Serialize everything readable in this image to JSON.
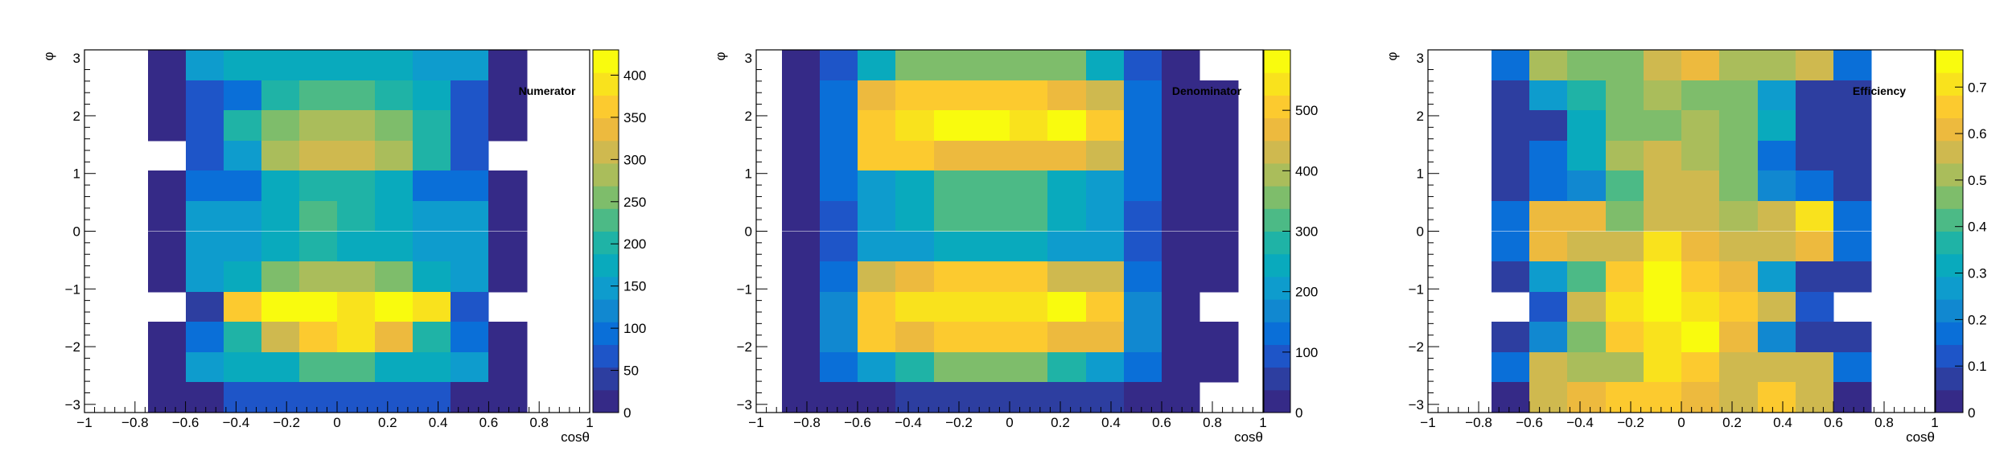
{
  "colors": {
    "palette": [
      "#352a87",
      "#2d3ea0",
      "#1e55c8",
      "#0a6fd8",
      "#1188d0",
      "#0e9ccd",
      "#09aabd",
      "#1fb3a6",
      "#4cba86",
      "#7ebd6b",
      "#aabd5b",
      "#cfb94f",
      "#edba3e",
      "#fcca2f",
      "#f9e21d",
      "#f9fb0e"
    ]
  },
  "chart_data": [
    {
      "type": "heatmap",
      "title": "Numerator",
      "xlabel": "cosθ",
      "ylabel": "φ",
      "xlim": [
        -1,
        1
      ],
      "ylim": [
        -3.14159,
        3.14159
      ],
      "x_ticks": [
        "−1",
        "−0.8",
        "−0.6",
        "−0.4",
        "−0.2",
        "0",
        "0.2",
        "0.4",
        "0.6",
        "0.8",
        "1"
      ],
      "y_ticks": [
        "−3",
        "−2",
        "−1",
        "0",
        "1",
        "2",
        "3"
      ],
      "x_edges": [
        -0.75,
        -0.6,
        -0.45,
        -0.3,
        -0.15,
        0,
        0.15,
        0.3,
        0.45,
        0.6,
        0.75
      ],
      "zlim": [
        0,
        430
      ],
      "z_ticks": [
        0,
        50,
        100,
        150,
        200,
        250,
        300,
        350,
        400
      ],
      "values": [
        [
          0,
          150,
          165,
          170,
          185,
          185,
          165,
          155,
          150,
          0
        ],
        [
          0,
          80,
          100,
          190,
          215,
          215,
          190,
          170,
          80,
          0
        ],
        [
          0,
          80,
          200,
          260,
          280,
          280,
          260,
          195,
          80,
          0
        ],
        [
          null,
          60,
          160,
          280,
          300,
          300,
          280,
          200,
          60,
          null
        ],
        [
          0,
          100,
          105,
          175,
          205,
          190,
          170,
          90,
          90,
          0
        ],
        [
          0,
          140,
          140,
          170,
          215,
          190,
          170,
          150,
          150,
          0
        ],
        [
          0,
          140,
          150,
          165,
          200,
          180,
          165,
          140,
          140,
          0
        ],
        [
          0,
          140,
          170,
          250,
          280,
          280,
          250,
          180,
          140,
          0
        ],
        [
          null,
          40,
          360,
          420,
          420,
          400,
          420,
          380,
          70,
          null
        ],
        [
          0,
          90,
          200,
          320,
          350,
          400,
          330,
          200,
          90,
          0
        ],
        [
          0,
          160,
          170,
          175,
          220,
          220,
          170,
          165,
          160,
          0
        ],
        [
          0,
          0,
          60,
          60,
          60,
          60,
          60,
          60,
          0,
          0
        ]
      ]
    },
    {
      "type": "heatmap",
      "title": "Denominator",
      "xlabel": "cosθ",
      "ylabel": "φ",
      "xlim": [
        -1,
        1
      ],
      "ylim": [
        -3.14159,
        3.14159
      ],
      "x_ticks": [
        "−1",
        "−0.8",
        "−0.6",
        "−0.4",
        "−0.2",
        "0",
        "0.2",
        "0.4",
        "0.6",
        "0.8",
        "1"
      ],
      "y_ticks": [
        "−3",
        "−2",
        "−1",
        "0",
        "1",
        "2",
        "3"
      ],
      "x_edges": [
        -0.9,
        -0.75,
        -0.6,
        -0.45,
        -0.3,
        -0.15,
        0,
        0.15,
        0.3,
        0.45,
        0.6,
        0.75,
        0.9
      ],
      "zlim": [
        0,
        600
      ],
      "z_ticks": [
        0,
        100,
        200,
        300,
        400,
        500
      ],
      "values": [
        [
          0,
          80,
          260,
          340,
          340,
          340,
          340,
          340,
          260,
          80,
          0,
          null
        ],
        [
          0,
          120,
          460,
          490,
          500,
          500,
          500,
          460,
          420,
          120,
          0,
          0
        ],
        [
          0,
          120,
          520,
          530,
          580,
          580,
          560,
          580,
          520,
          120,
          0,
          0
        ],
        [
          0,
          140,
          520,
          520,
          480,
          480,
          470,
          450,
          440,
          140,
          0,
          0
        ],
        [
          0,
          140,
          190,
          250,
          320,
          320,
          320,
          250,
          190,
          140,
          0,
          0
        ],
        [
          0,
          100,
          190,
          260,
          330,
          330,
          330,
          260,
          190,
          100,
          0,
          0
        ],
        [
          0,
          100,
          210,
          210,
          260,
          260,
          260,
          210,
          210,
          100,
          0,
          0
        ],
        [
          0,
          140,
          420,
          460,
          490,
          490,
          490,
          440,
          440,
          140,
          0,
          0
        ],
        [
          0,
          150,
          510,
          530,
          550,
          550,
          550,
          590,
          490,
          150,
          0,
          null
        ],
        [
          0,
          180,
          510,
          480,
          490,
          500,
          500,
          460,
          460,
          180,
          0,
          0
        ],
        [
          0,
          120,
          220,
          270,
          350,
          350,
          350,
          270,
          220,
          120,
          0,
          0
        ],
        [
          0,
          0,
          0,
          60,
          60,
          60,
          60,
          60,
          60,
          0,
          0,
          null
        ]
      ]
    },
    {
      "type": "heatmap",
      "title": "Efficiency",
      "xlabel": "cosθ",
      "ylabel": "φ",
      "xlim": [
        -1,
        1
      ],
      "ylim": [
        -3.14159,
        3.14159
      ],
      "x_ticks": [
        "−1",
        "−0.8",
        "−0.6",
        "−0.4",
        "−0.2",
        "0",
        "0.2",
        "0.4",
        "0.6",
        "0.8",
        "1"
      ],
      "y_ticks": [
        "−3",
        "−2",
        "−1",
        "0",
        "1",
        "2",
        "3"
      ],
      "x_edges": [
        -0.75,
        -0.6,
        -0.45,
        -0.3,
        -0.15,
        0,
        0.15,
        0.3,
        0.45,
        0.6,
        0.75
      ],
      "zlim": [
        0,
        0.78
      ],
      "z_ticks": [
        0,
        0.1,
        0.2,
        0.3,
        0.4,
        0.5,
        0.6,
        0.7
      ],
      "values": [
        [
          0.15,
          0.52,
          0.44,
          0.44,
          0.58,
          0.63,
          0.5,
          0.5,
          0.55,
          0.15
        ],
        [
          0.06,
          0.25,
          0.36,
          0.46,
          0.49,
          0.45,
          0.46,
          0.25,
          0.06,
          0.06
        ],
        [
          0.06,
          0.06,
          0.32,
          0.45,
          0.48,
          0.5,
          0.46,
          0.32,
          0.06,
          0.06
        ],
        [
          0.06,
          0.15,
          0.32,
          0.53,
          0.54,
          0.53,
          0.46,
          0.15,
          0.06,
          0.06
        ],
        [
          0.06,
          0.18,
          0.23,
          0.41,
          0.54,
          0.54,
          0.46,
          0.21,
          0.18,
          0.06
        ],
        [
          0.19,
          0.6,
          0.6,
          0.46,
          0.58,
          0.58,
          0.53,
          0.55,
          0.7,
          0.19
        ],
        [
          0.19,
          0.6,
          0.55,
          0.55,
          0.73,
          0.61,
          0.56,
          0.56,
          0.6,
          0.19
        ],
        [
          0.06,
          0.28,
          0.4,
          0.64,
          0.74,
          0.66,
          0.6,
          0.28,
          0.06,
          0.06
        ],
        [
          null,
          0.1,
          0.58,
          0.71,
          0.74,
          0.71,
          0.64,
          0.56,
          0.1,
          null
        ],
        [
          0.06,
          0.24,
          0.45,
          0.66,
          0.73,
          0.74,
          0.6,
          0.24,
          0.06,
          0.06
        ],
        [
          0.17,
          0.56,
          0.52,
          0.52,
          0.7,
          0.68,
          0.55,
          0.55,
          0.56,
          0.17
        ],
        [
          0,
          0.56,
          0.62,
          0.66,
          0.66,
          0.62,
          0.58,
          0.64,
          0.56,
          0
        ]
      ]
    }
  ]
}
